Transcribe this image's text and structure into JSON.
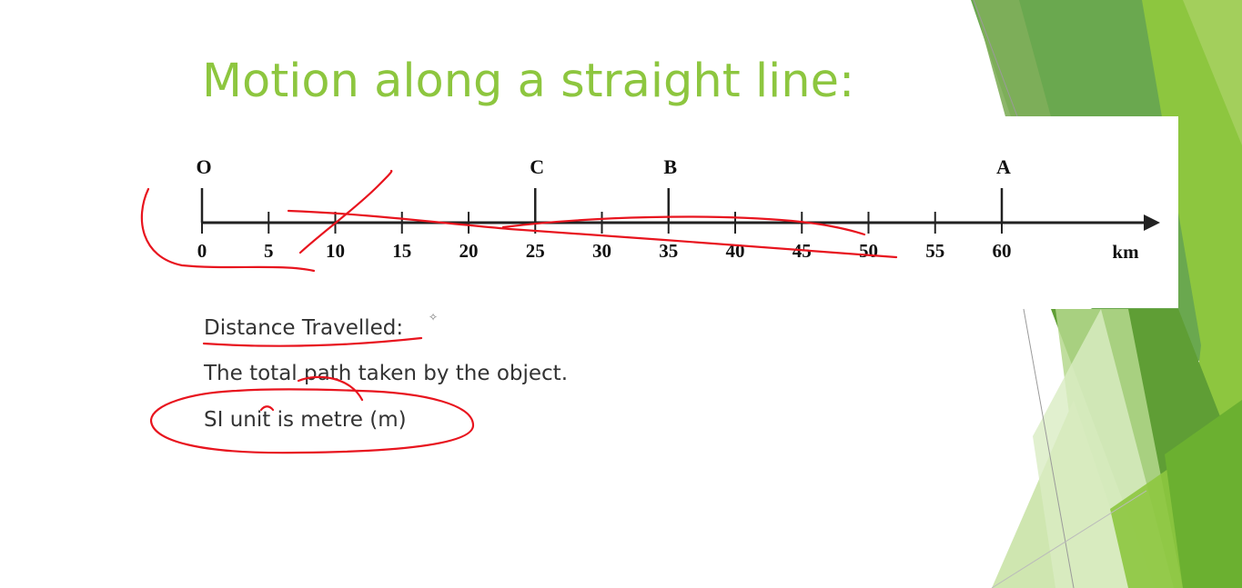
{
  "slide": {
    "title": "Motion along a straight line:",
    "theme_colors": {
      "title": "#8dc63f",
      "accent_dark": "#4a8c2a",
      "accent_light": "#8dc63f",
      "ink": "#e8141e"
    }
  },
  "number_line": {
    "points": [
      {
        "label": "O",
        "value": 0
      },
      {
        "label": "C",
        "value": 25
      },
      {
        "label": "B",
        "value": 35
      },
      {
        "label": "A",
        "value": 60
      }
    ],
    "ticks": [
      {
        "value": 0,
        "label": "0"
      },
      {
        "value": 5,
        "label": "5"
      },
      {
        "value": 10,
        "label": "10"
      },
      {
        "value": 15,
        "label": "15"
      },
      {
        "value": 20,
        "label": "20"
      },
      {
        "value": 25,
        "label": "25"
      },
      {
        "value": 30,
        "label": "30"
      },
      {
        "value": 35,
        "label": "35"
      },
      {
        "value": 40,
        "label": "40"
      },
      {
        "value": 45,
        "label": "45"
      },
      {
        "value": 50,
        "label": "50"
      },
      {
        "value": 55,
        "label": "55"
      },
      {
        "value": 60,
        "label": "60"
      }
    ],
    "unit": "km",
    "axis_range": [
      0,
      60
    ]
  },
  "content": {
    "heading": "Distance Travelled:",
    "heading_icon": "sparkle-icon",
    "definition": "The total path taken by the object.",
    "si_unit": "SI unit is metre (m)"
  },
  "annotations": {
    "description_icon": "red-pen-ink-strokes"
  }
}
